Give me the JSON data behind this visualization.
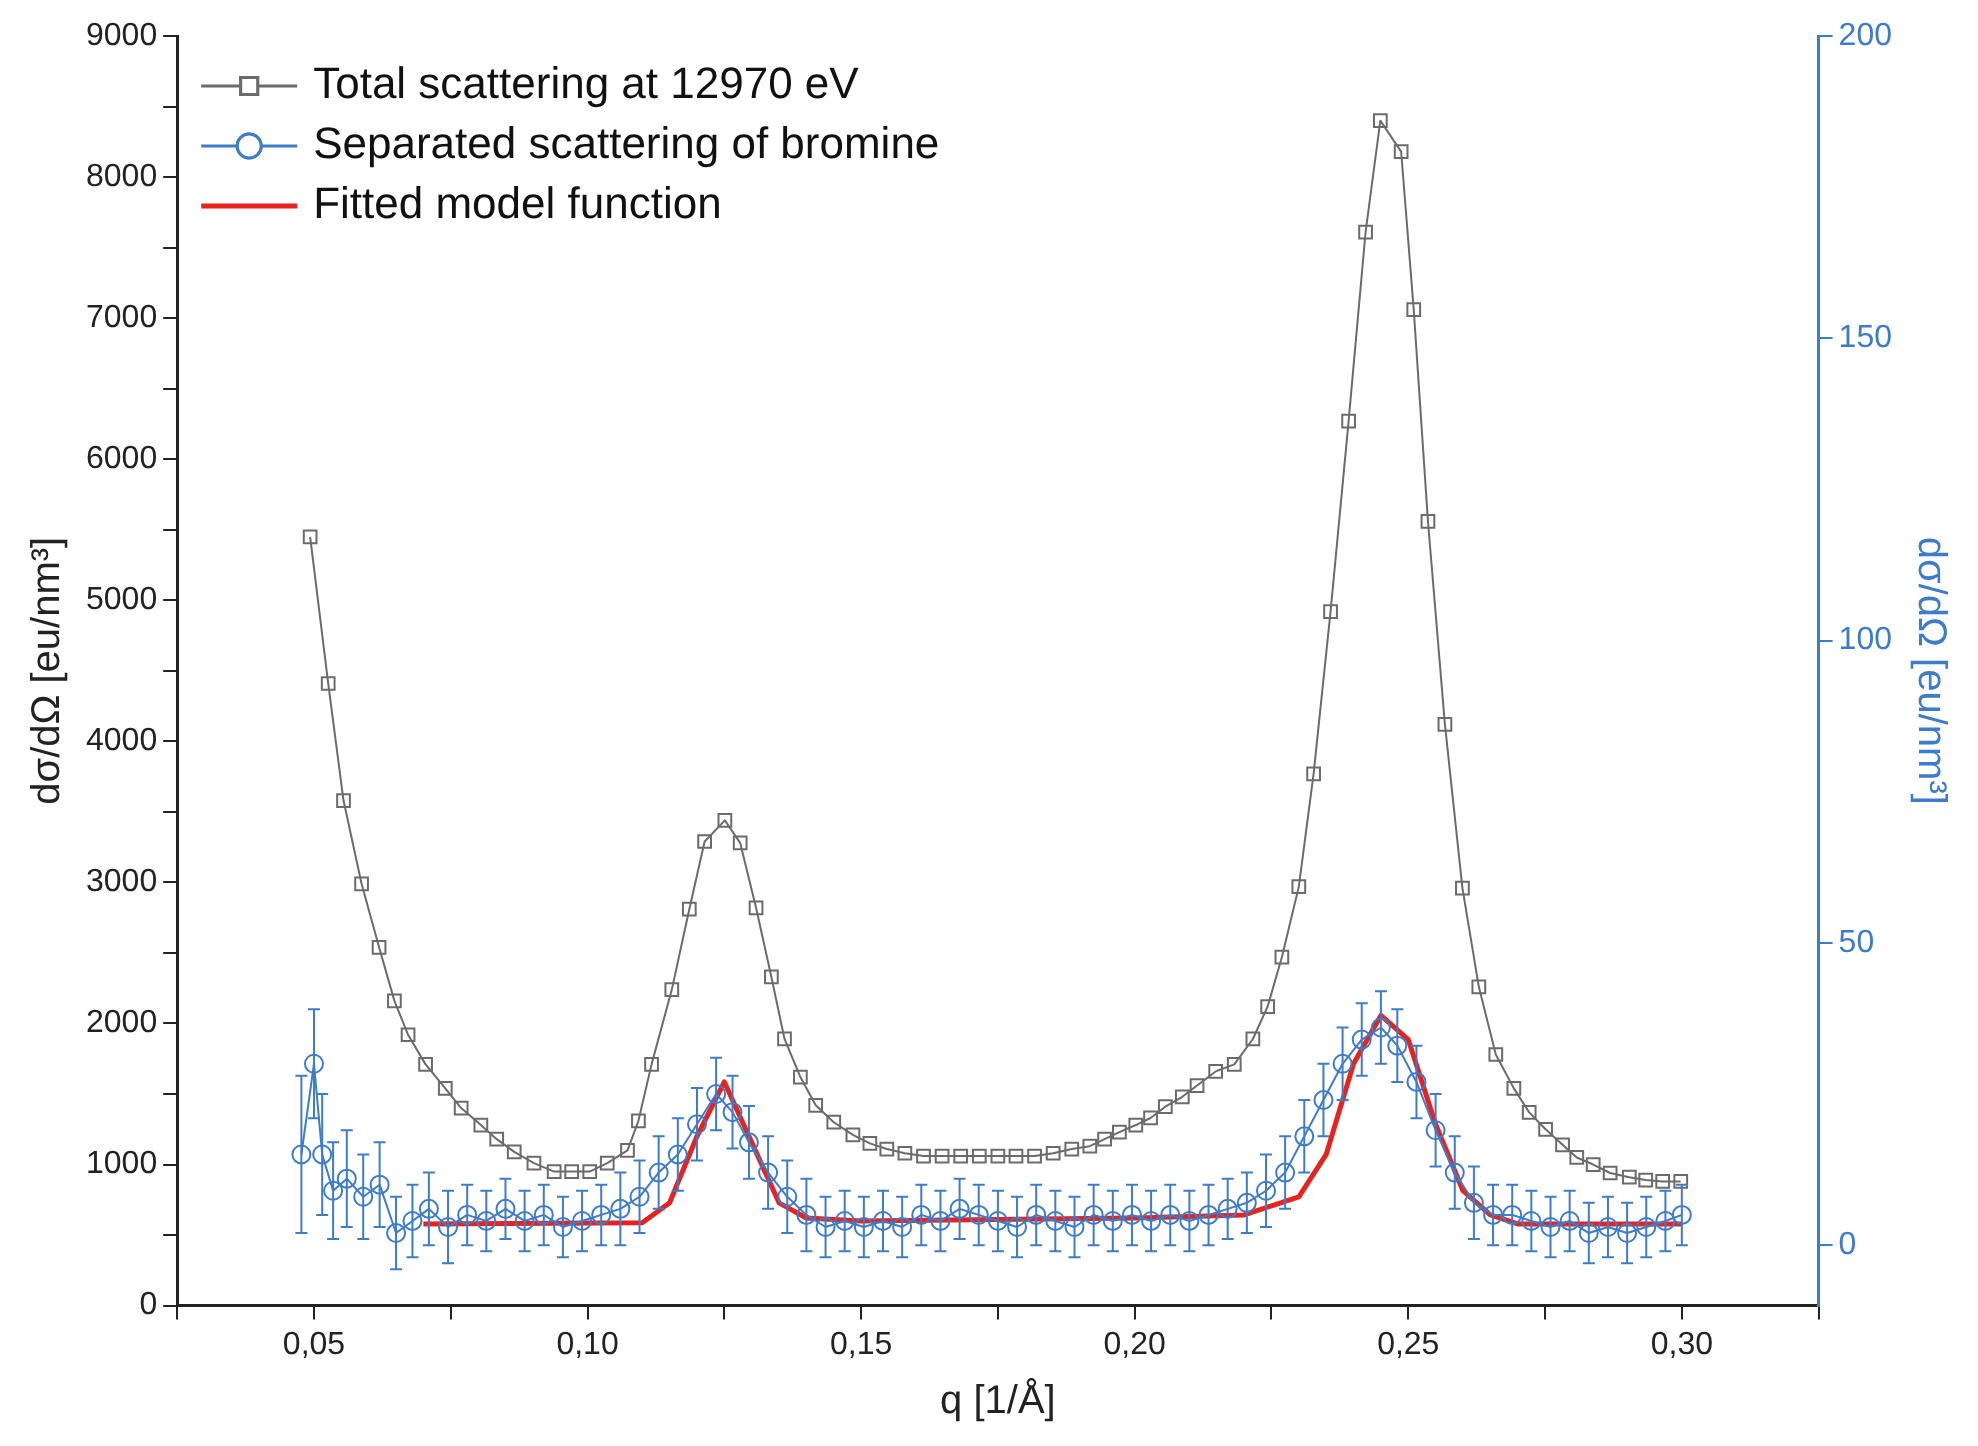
{
  "chart_data": {
    "type": "line",
    "xlabel": "q [1/Å]",
    "ylabel": "dσ/dΩ [eu/nm³]",
    "y2label": "dσ/dΩ [eu/nm³]",
    "xlim": [
      0.025,
      0.325
    ],
    "xticks": [
      {
        "value": 0.025,
        "label": null
      },
      {
        "value": 0.05,
        "label": "0,05"
      },
      {
        "value": 0.075,
        "label": null
      },
      {
        "value": 0.1,
        "label": "0,10"
      },
      {
        "value": 0.125,
        "label": null
      },
      {
        "value": 0.15,
        "label": "0,15"
      },
      {
        "value": 0.175,
        "label": null
      },
      {
        "value": 0.2,
        "label": "0,20"
      },
      {
        "value": 0.225,
        "label": null
      },
      {
        "value": 0.25,
        "label": "0,25"
      },
      {
        "value": 0.275,
        "label": null
      },
      {
        "value": 0.3,
        "label": "0,30"
      },
      {
        "value": 0.325,
        "label": null
      }
    ],
    "ylim": [
      0,
      9000
    ],
    "yticks": [
      0,
      {
        "value": 500,
        "label": null
      },
      1000,
      {
        "value": 1500,
        "label": null
      },
      2000,
      {
        "value": 2500,
        "label": null
      },
      3000,
      {
        "value": 3500,
        "label": null
      },
      4000,
      {
        "value": 4500,
        "label": null
      },
      5000,
      {
        "value": 5500,
        "label": null
      },
      6000,
      {
        "value": 6500,
        "label": null
      },
      7000,
      {
        "value": 7500,
        "label": null
      },
      8000,
      {
        "value": 8500,
        "label": null
      },
      9000
    ],
    "y2lim": [
      -10,
      200
    ],
    "y2ticks": [
      0,
      50,
      100,
      150,
      200
    ],
    "legend": "top left",
    "grid": false,
    "series": [
      {
        "name": "Total scattering at 12970 eV",
        "marker": "square",
        "color": "#6b6b6b",
        "x": [
          0.0493,
          0.0526,
          0.0554,
          0.0587,
          0.0619,
          0.0647,
          0.0672,
          0.0704,
          0.074,
          0.0769,
          0.0805,
          0.0834,
          0.0866,
          0.0902,
          0.0939,
          0.0971,
          0.1004,
          0.1036,
          0.1073,
          0.1093,
          0.1117,
          0.1154,
          0.1186,
          0.1214,
          0.1251,
          0.1279,
          0.1308,
          0.1336,
          0.136,
          0.1389,
          0.1417,
          0.145,
          0.1485,
          0.1516,
          0.1547,
          0.158,
          0.1614,
          0.1648,
          0.1682,
          0.1716,
          0.175,
          0.1783,
          0.1817,
          0.1851,
          0.1885,
          0.1918,
          0.1945,
          0.1972,
          0.2002,
          0.2029,
          0.2056,
          0.2087,
          0.2114,
          0.2148,
          0.2182,
          0.2216,
          0.2243,
          0.2269,
          0.23,
          0.2327,
          0.2358,
          0.2391,
          0.2422,
          0.2449,
          0.2487,
          0.251,
          0.2536,
          0.2567,
          0.2599,
          0.2629,
          0.266,
          0.2693,
          0.2721,
          0.2751,
          0.2782,
          0.2808,
          0.2838,
          0.2869,
          0.2904,
          0.2934,
          0.2965,
          0.2998
        ],
        "values": [
          5450,
          4410,
          3580,
          2990,
          2540,
          2160,
          1920,
          1710,
          1540,
          1400,
          1280,
          1180,
          1090,
          1010,
          950,
          950,
          950,
          1010,
          1100,
          1310,
          1710,
          2240,
          2810,
          3290,
          3440,
          3280,
          2820,
          2330,
          1890,
          1620,
          1420,
          1300,
          1210,
          1150,
          1110,
          1080,
          1060,
          1060,
          1060,
          1060,
          1060,
          1060,
          1060,
          1080,
          1110,
          1130,
          1180,
          1230,
          1280,
          1330,
          1410,
          1480,
          1560,
          1660,
          1710,
          1890,
          2120,
          2470,
          2970,
          3770,
          4920,
          6270,
          7610,
          8400,
          8180,
          7060,
          5560,
          4120,
          2960,
          2260,
          1780,
          1540,
          1370,
          1250,
          1140,
          1050,
          1000,
          940,
          910,
          890,
          880,
          880
        ]
      },
      {
        "name": "Separated scattering of bromine",
        "marker": "circle",
        "color": "#3d7cc9",
        "axis": "y2",
        "x": [
          0.0477,
          0.05,
          0.0515,
          0.0535,
          0.056,
          0.059,
          0.062,
          0.065,
          0.068,
          0.071,
          0.0745,
          0.078,
          0.0815,
          0.085,
          0.0885,
          0.092,
          0.0955,
          0.099,
          0.1025,
          0.106,
          0.1095,
          0.113,
          0.1165,
          0.12,
          0.1235,
          0.1265,
          0.1295,
          0.133,
          0.1365,
          0.14,
          0.1435,
          0.147,
          0.1505,
          0.154,
          0.1575,
          0.161,
          0.1645,
          0.168,
          0.1715,
          0.175,
          0.1785,
          0.182,
          0.1855,
          0.189,
          0.1925,
          0.196,
          0.1995,
          0.203,
          0.2065,
          0.21,
          0.2135,
          0.217,
          0.2205,
          0.224,
          0.2275,
          0.231,
          0.2345,
          0.238,
          0.2415,
          0.245,
          0.248,
          0.2515,
          0.255,
          0.2585,
          0.262,
          0.2655,
          0.269,
          0.2725,
          0.276,
          0.2795,
          0.283,
          0.2865,
          0.29,
          0.2935,
          0.297,
          0.3
        ],
        "values": [
          15,
          30,
          15,
          9,
          11,
          8,
          10,
          2,
          4,
          6,
          3,
          5,
          4,
          6,
          4,
          5,
          3,
          4,
          5,
          6,
          8,
          12,
          15,
          20,
          25,
          22,
          17,
          12,
          8,
          5,
          3,
          4,
          3,
          4,
          3,
          5,
          4,
          6,
          5,
          4,
          3,
          5,
          4,
          3,
          5,
          4,
          5,
          4,
          5,
          4,
          5,
          6,
          7,
          9,
          12,
          18,
          24,
          30,
          34,
          36,
          33,
          27,
          19,
          12,
          7,
          5,
          5,
          4,
          3,
          4,
          2,
          3,
          2,
          3,
          4,
          5
        ],
        "errors": [
          13,
          9,
          10,
          8,
          8,
          7,
          7,
          6,
          6,
          6,
          6,
          5,
          5,
          5,
          5,
          5,
          5,
          5,
          5,
          6,
          6,
          6,
          6,
          6,
          6,
          6,
          6,
          6,
          6,
          6,
          5,
          5,
          5,
          5,
          5,
          5,
          5,
          5,
          5,
          5,
          5,
          5,
          5,
          5,
          5,
          5,
          5,
          5,
          5,
          5,
          5,
          5,
          5,
          6,
          6,
          6,
          6,
          6,
          6,
          6,
          6,
          6,
          6,
          6,
          6,
          5,
          5,
          5,
          5,
          5,
          5,
          5,
          5,
          5,
          5,
          5
        ]
      },
      {
        "name": "Fitted model function",
        "marker": "none",
        "color": "#e8231f",
        "axis": "y2",
        "x": [
          0.07,
          0.11,
          0.115,
          0.12,
          0.125,
          0.13,
          0.135,
          0.14,
          0.15,
          0.2,
          0.22,
          0.23,
          0.235,
          0.24,
          0.245,
          0.25,
          0.255,
          0.26,
          0.265,
          0.27,
          0.3
        ],
        "values": [
          3.5,
          3.7,
          7,
          18,
          27,
          17,
          7,
          4.5,
          4,
          4.5,
          5,
          8,
          15,
          30,
          38,
          34,
          20,
          9,
          5,
          3.5,
          3.5
        ]
      }
    ]
  }
}
